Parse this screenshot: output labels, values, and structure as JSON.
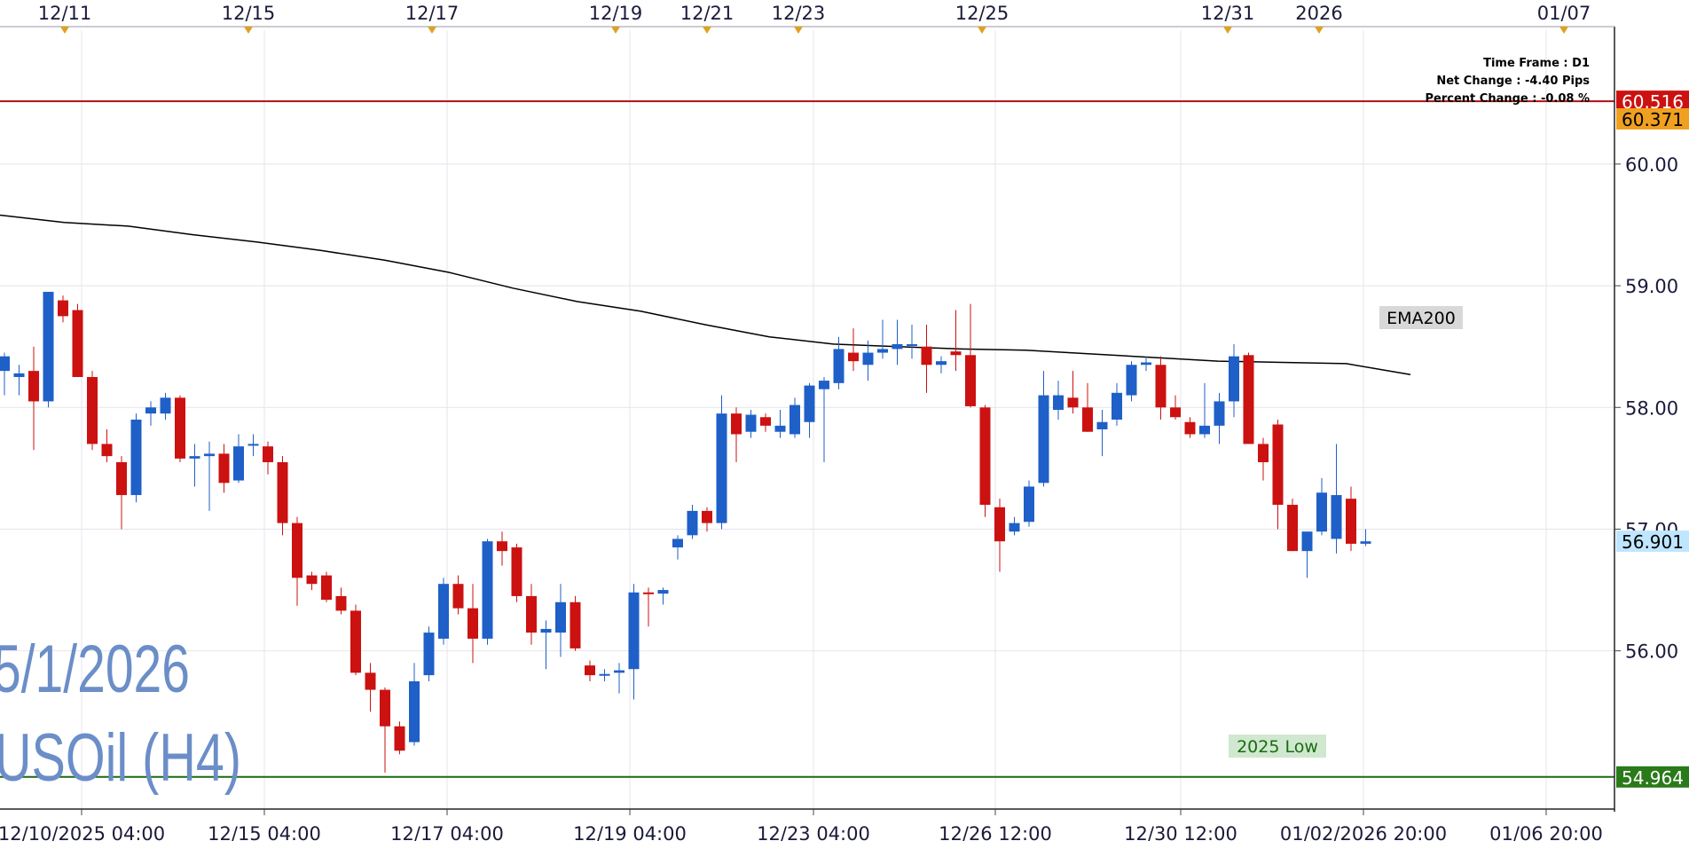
{
  "overlay": {
    "date_label": "5/1/2026",
    "symbol_label": "USOil (H4)"
  },
  "info_box": {
    "time_frame": "Time Frame : D1",
    "net_change": "Net Change : -4.40 Pips",
    "percent_change": "Percent Change : -0.08 %"
  },
  "annotations": {
    "ema_label": "EMA200",
    "low_label": "2025 Low"
  },
  "price_tags": [
    {
      "label": "60.516",
      "value": 60.516,
      "color": "#cc1111",
      "text_color": "#ffffff"
    },
    {
      "label": "60.371",
      "value": 60.371,
      "color": "#f0a020",
      "text_color": "#000000"
    },
    {
      "label": "56.901",
      "value": 56.901,
      "color": "#bfe6ff",
      "text_color": "#000000"
    },
    {
      "label": "54.964",
      "value": 54.964,
      "color": "#2a7a1a",
      "text_color": "#ffffff"
    }
  ],
  "chart_data": {
    "type": "candlestick",
    "bull_color": "#1f5fc8",
    "bear_color": "#cc1111",
    "ylim": [
      54.7,
      61.1
    ],
    "y_ticks": [
      "56.00",
      "57.00",
      "58.00",
      "59.00",
      "60.00"
    ],
    "y_tick_values": [
      56,
      57,
      58,
      59,
      60
    ],
    "top_dates": [
      "12/11",
      "12/15",
      "12/17",
      "12/19",
      "12/21",
      "12/23",
      "12/25",
      "12/31",
      "2026",
      "01/07"
    ],
    "bottom_dates": [
      "12/10/2025 04:00",
      "12/15 04:00",
      "12/17 04:00",
      "12/19 04:00",
      "12/23 04:00",
      "12/26 12:00",
      "12/30 12:00",
      "01/02/2026 20:00",
      "01/06 20:00"
    ],
    "levels": [
      {
        "name": "60.516",
        "value": 60.516,
        "color": "#b01010"
      },
      {
        "name": "2025 Low",
        "value": 54.964,
        "color": "#1a6a10"
      }
    ],
    "ema200": [
      59.58,
      59.52,
      59.49,
      59.42,
      59.36,
      59.29,
      59.21,
      59.11,
      58.98,
      58.87,
      58.79,
      58.68,
      58.58,
      58.52,
      58.5,
      58.48,
      58.47,
      58.44,
      58.41,
      58.38,
      58.37,
      58.36,
      58.27
    ],
    "candles": [
      [
        58.3,
        58.45,
        58.1,
        58.42
      ],
      [
        58.25,
        58.35,
        58.1,
        58.28
      ],
      [
        58.3,
        58.5,
        57.65,
        58.05
      ],
      [
        58.05,
        58.95,
        58.0,
        58.95
      ],
      [
        58.88,
        58.92,
        58.7,
        58.75
      ],
      [
        58.8,
        58.85,
        58.25,
        58.25
      ],
      [
        58.25,
        58.3,
        57.65,
        57.7
      ],
      [
        57.7,
        57.82,
        57.55,
        57.6
      ],
      [
        57.55,
        57.6,
        57.0,
        57.28
      ],
      [
        57.28,
        57.95,
        57.22,
        57.9
      ],
      [
        57.95,
        58.05,
        57.85,
        58.0
      ],
      [
        57.95,
        58.12,
        57.9,
        58.08
      ],
      [
        58.08,
        58.1,
        57.55,
        57.58
      ],
      [
        57.58,
        57.7,
        57.35,
        57.6
      ],
      [
        57.6,
        57.72,
        57.15,
        57.62
      ],
      [
        57.62,
        57.7,
        57.3,
        57.38
      ],
      [
        57.4,
        57.78,
        57.38,
        57.68
      ],
      [
        57.7,
        57.78,
        57.6,
        57.7
      ],
      [
        57.68,
        57.72,
        57.45,
        57.55
      ],
      [
        57.55,
        57.6,
        56.95,
        57.05
      ],
      [
        57.05,
        57.1,
        56.37,
        56.6
      ],
      [
        56.62,
        56.65,
        56.5,
        56.55
      ],
      [
        56.62,
        56.65,
        56.4,
        56.42
      ],
      [
        56.45,
        56.52,
        56.3,
        56.33
      ],
      [
        56.33,
        56.38,
        55.8,
        55.82
      ],
      [
        55.82,
        55.9,
        55.5,
        55.68
      ],
      [
        55.68,
        55.7,
        55.0,
        55.38
      ],
      [
        55.38,
        55.42,
        55.15,
        55.18
      ],
      [
        55.25,
        55.9,
        55.22,
        55.75
      ],
      [
        55.8,
        56.2,
        55.75,
        56.15
      ],
      [
        56.1,
        56.6,
        56.05,
        56.55
      ],
      [
        56.55,
        56.62,
        56.3,
        56.35
      ],
      [
        56.35,
        56.55,
        55.9,
        56.1
      ],
      [
        56.1,
        56.92,
        56.05,
        56.9
      ],
      [
        56.9,
        56.98,
        56.7,
        56.82
      ],
      [
        56.85,
        56.88,
        56.4,
        56.45
      ],
      [
        56.45,
        56.55,
        56.05,
        56.15
      ],
      [
        56.15,
        56.25,
        55.85,
        56.18
      ],
      [
        56.15,
        56.55,
        55.95,
        56.4
      ],
      [
        56.4,
        56.45,
        56.0,
        56.02
      ],
      [
        55.88,
        55.92,
        55.75,
        55.8
      ],
      [
        55.8,
        55.85,
        55.75,
        55.81
      ],
      [
        55.82,
        55.9,
        55.65,
        55.84
      ],
      [
        55.85,
        56.55,
        55.6,
        56.48
      ],
      [
        56.48,
        56.52,
        56.2,
        56.47
      ],
      [
        56.47,
        56.52,
        56.38,
        56.5
      ],
      [
        56.85,
        56.95,
        56.75,
        56.92
      ],
      [
        56.95,
        57.2,
        56.92,
        57.15
      ],
      [
        57.15,
        57.18,
        56.98,
        57.05
      ],
      [
        57.05,
        58.1,
        57.0,
        57.95
      ],
      [
        57.95,
        58.0,
        57.55,
        57.78
      ],
      [
        57.8,
        57.98,
        57.75,
        57.94
      ],
      [
        57.92,
        57.95,
        57.8,
        57.85
      ],
      [
        57.8,
        57.98,
        57.75,
        57.85
      ],
      [
        57.78,
        58.08,
        57.75,
        58.02
      ],
      [
        57.88,
        58.2,
        57.75,
        58.18
      ],
      [
        58.15,
        58.25,
        57.55,
        58.22
      ],
      [
        58.2,
        58.58,
        58.15,
        58.48
      ],
      [
        58.45,
        58.65,
        58.3,
        58.38
      ],
      [
        58.35,
        58.55,
        58.22,
        58.45
      ],
      [
        58.45,
        58.72,
        58.4,
        58.48
      ],
      [
        58.48,
        58.72,
        58.35,
        58.52
      ],
      [
        58.52,
        58.68,
        58.4,
        58.52
      ],
      [
        58.5,
        58.68,
        58.12,
        58.35
      ],
      [
        58.35,
        58.42,
        58.28,
        58.38
      ],
      [
        58.46,
        58.8,
        58.3,
        58.43
      ],
      [
        58.43,
        58.85,
        58.0,
        58.01
      ],
      [
        58.0,
        58.02,
        57.1,
        57.2
      ],
      [
        57.18,
        57.25,
        56.65,
        56.9
      ],
      [
        56.98,
        57.1,
        56.95,
        57.05
      ],
      [
        57.06,
        57.4,
        57.02,
        57.35
      ],
      [
        57.38,
        58.3,
        57.35,
        58.1
      ],
      [
        57.98,
        58.22,
        57.9,
        58.1
      ],
      [
        58.08,
        58.3,
        57.95,
        58.0
      ],
      [
        58.0,
        58.2,
        57.8,
        57.8
      ],
      [
        57.82,
        57.98,
        57.6,
        57.88
      ],
      [
        57.9,
        58.2,
        57.85,
        58.12
      ],
      [
        58.1,
        58.38,
        58.05,
        58.35
      ],
      [
        58.35,
        58.42,
        58.3,
        58.37
      ],
      [
        58.35,
        58.42,
        57.9,
        58.0
      ],
      [
        58.0,
        58.1,
        57.9,
        57.92
      ],
      [
        57.88,
        57.92,
        57.75,
        57.78
      ],
      [
        57.78,
        58.2,
        57.75,
        57.85
      ],
      [
        57.85,
        58.12,
        57.7,
        58.05
      ],
      [
        58.05,
        58.52,
        57.92,
        58.42
      ],
      [
        58.43,
        58.45,
        57.7,
        57.7
      ],
      [
        57.7,
        57.75,
        57.4,
        57.55
      ],
      [
        57.86,
        57.9,
        57.0,
        57.2
      ],
      [
        57.2,
        57.25,
        56.82,
        56.82
      ],
      [
        56.82,
        56.98,
        56.6,
        56.98
      ],
      [
        56.98,
        57.42,
        56.95,
        57.3
      ],
      [
        56.92,
        57.7,
        56.8,
        57.28
      ],
      [
        57.25,
        57.35,
        56.82,
        56.88
      ],
      [
        56.88,
        57.0,
        56.86,
        56.9
      ]
    ]
  }
}
